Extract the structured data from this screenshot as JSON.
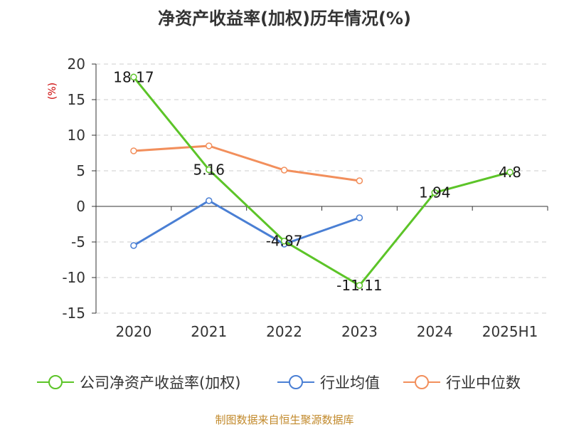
{
  "chart_data": {
    "type": "line",
    "title": "净资产收益率(加权)历年情况(%)",
    "ylabel": "(%)",
    "categories": [
      "2020",
      "2021",
      "2022",
      "2023",
      "2024",
      "2025H1"
    ],
    "ylim": [
      -15,
      20
    ],
    "yticks": [
      20,
      15,
      10,
      5,
      0,
      -5,
      -10,
      -15
    ],
    "grid": true,
    "legend_position": "bottom",
    "series": [
      {
        "name": "公司净资产收益率(加权)",
        "color": "#5cc428",
        "values": [
          18.17,
          5.16,
          -4.87,
          -11.11,
          1.94,
          4.8
        ],
        "labels": [
          "18.17",
          "5.16",
          "-4.87",
          "-11.11",
          "1.94",
          "4.8"
        ]
      },
      {
        "name": "行业均值",
        "color": "#4a7fd4",
        "values": [
          -5.5,
          0.8,
          -5.3,
          -1.6,
          null,
          null
        ]
      },
      {
        "name": "行业中位数",
        "color": "#f28f5c",
        "values": [
          7.8,
          8.5,
          5.1,
          3.6,
          null,
          null
        ]
      }
    ]
  },
  "source": "制图数据来自恒生聚源数据库"
}
